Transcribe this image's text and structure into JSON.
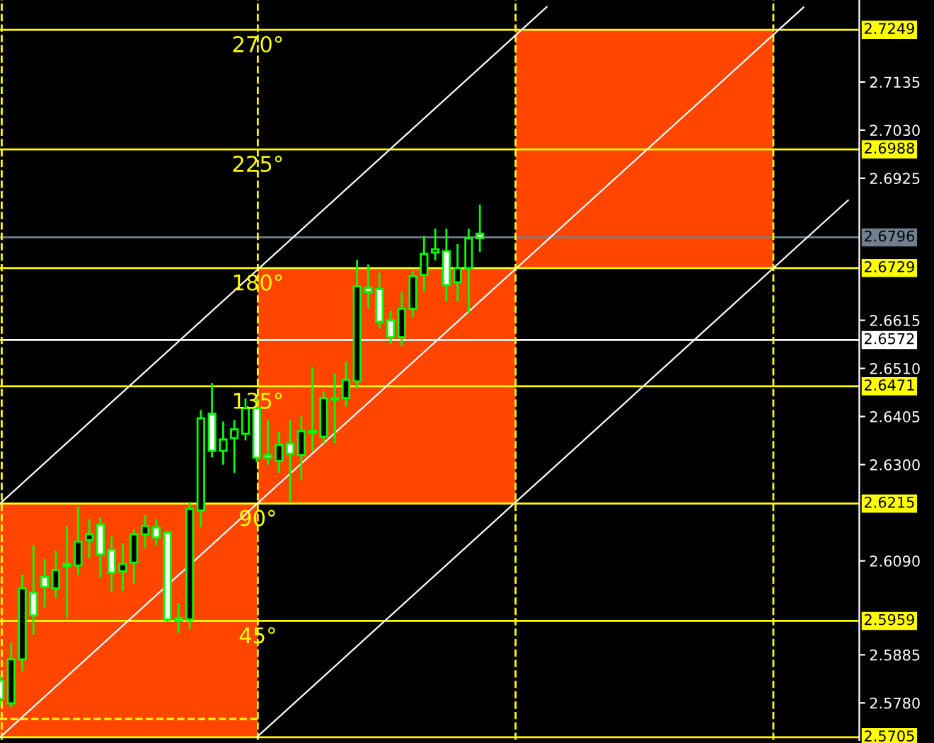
{
  "chart_data": {
    "type": "candlestick",
    "categories": [
      null,
      null,
      null,
      null,
      null,
      null,
      null,
      null,
      null,
      null,
      null,
      null,
      null,
      null,
      null,
      null,
      null,
      null,
      null,
      null,
      null,
      null,
      null,
      null,
      null,
      null,
      null,
      null,
      null,
      null,
      null,
      null,
      null,
      null,
      null,
      null,
      null,
      null,
      null,
      null,
      null,
      null,
      null,
      null,
      null,
      null,
      null,
      null,
      null,
      null,
      null,
      null,
      null,
      null,
      null,
      null,
      null,
      null,
      null,
      null,
      null,
      null,
      null,
      null,
      null,
      null,
      null,
      null,
      null,
      null,
      null,
      null,
      null,
      null,
      null,
      null,
      null
    ],
    "ylim": [
      2.5699,
      2.7314
    ],
    "tick_labels": "y",
    "yticks": [
      {
        "value": 2.578,
        "label": "2.5780"
      },
      {
        "value": 2.5885,
        "label": "2.5885"
      },
      {
        "value": 2.609,
        "label": "2.6090"
      },
      {
        "value": 2.63,
        "label": "2.6300"
      },
      {
        "value": 2.6405,
        "label": "2.6405"
      },
      {
        "value": 2.651,
        "label": "2.6510"
      },
      {
        "value": 2.6615,
        "label": "2.6615"
      },
      {
        "value": 2.6925,
        "label": "2.6925"
      },
      {
        "value": 2.703,
        "label": "2.7030"
      },
      {
        "value": 2.7135,
        "label": "2.7135"
      }
    ],
    "series": [
      {
        "type": "line",
        "color": "#ffffff",
        "values": [
          2.6215,
          null,
          null,
          null,
          null,
          null,
          null,
          null,
          null,
          null,
          null,
          null,
          null,
          null,
          null,
          null,
          null,
          null,
          null,
          null,
          null,
          null,
          null,
          null,
          null,
          null,
          null,
          null,
          null,
          null,
          null,
          null,
          null,
          null,
          null,
          null,
          null,
          null,
          null,
          null,
          null,
          null,
          null,
          null,
          null,
          null,
          null,
          null,
          null,
          2.7299,
          null,
          null,
          null,
          null,
          null,
          null,
          null,
          null,
          null,
          null,
          null,
          null,
          null,
          null,
          null,
          null,
          null,
          null,
          null,
          null,
          null,
          null,
          null,
          null,
          null,
          null,
          null
        ]
      },
      {
        "type": "line",
        "color": "#ffffff",
        "values": [
          2.5705,
          null,
          null,
          null,
          null,
          null,
          null,
          null,
          null,
          null,
          null,
          null,
          null,
          null,
          null,
          null,
          null,
          null,
          null,
          null,
          null,
          null,
          null,
          null,
          null,
          null,
          null,
          null,
          null,
          null,
          null,
          null,
          null,
          null,
          null,
          null,
          null,
          null,
          null,
          null,
          null,
          null,
          null,
          null,
          null,
          null,
          null,
          null,
          null,
          null,
          null,
          null,
          null,
          null,
          null,
          null,
          null,
          null,
          null,
          null,
          null,
          null,
          null,
          null,
          null,
          null,
          null,
          null,
          null,
          null,
          null,
          null,
          2.7298,
          null,
          null,
          null,
          null
        ]
      },
      {
        "type": "line",
        "color": "#ffffff",
        "values": [
          null,
          null,
          null,
          null,
          null,
          null,
          null,
          null,
          null,
          null,
          null,
          null,
          null,
          null,
          null,
          null,
          null,
          null,
          null,
          null,
          null,
          null,
          null,
          2.5705,
          null,
          null,
          null,
          null,
          null,
          null,
          null,
          null,
          null,
          null,
          null,
          null,
          null,
          null,
          null,
          null,
          null,
          null,
          null,
          null,
          null,
          null,
          null,
          null,
          null,
          null,
          null,
          null,
          null,
          null,
          null,
          null,
          null,
          null,
          null,
          null,
          null,
          null,
          null,
          null,
          null,
          null,
          null,
          null,
          null,
          null,
          null,
          null,
          null,
          null,
          null,
          null,
          2.6877
        ]
      },
      {
        "color": "#00ff00",
        "ohlc": [
          [
            2.5829,
            2.5838,
            2.5776,
            2.5789
          ],
          [
            2.5779,
            2.5909,
            2.5773,
            2.5875
          ],
          [
            2.5875,
            2.6058,
            2.5851,
            2.603
          ],
          [
            2.6021,
            2.6123,
            2.5931,
            2.5971
          ],
          [
            2.6055,
            2.6092,
            2.599,
            2.6033
          ],
          [
            2.603,
            2.611,
            2.6011,
            2.607
          ],
          [
            2.6083,
            2.6163,
            2.5968,
            2.6078
          ],
          [
            2.608,
            2.6206,
            2.6061,
            2.6132
          ],
          [
            2.6135,
            2.6179,
            2.6098,
            2.6148
          ],
          [
            2.6169,
            2.6182,
            2.6055,
            2.6104
          ],
          [
            2.6114,
            2.6141,
            2.6024,
            2.6064
          ],
          [
            2.6067,
            2.6126,
            2.6027,
            2.6083
          ],
          [
            2.6086,
            2.6157,
            2.6042,
            2.6148
          ],
          [
            2.6148,
            2.6188,
            2.612,
            2.6166
          ],
          [
            2.6163,
            2.6179,
            2.6126,
            2.6141
          ],
          [
            2.6151,
            2.6154,
            2.5959,
            2.5962
          ],
          [
            2.5965,
            2.5996,
            2.5934,
            2.5959
          ],
          [
            2.5962,
            2.6216,
            2.5943,
            2.6203
          ],
          [
            2.62,
            2.6417,
            2.6166,
            2.6401
          ],
          [
            2.6411,
            2.6476,
            2.6318,
            2.633
          ],
          [
            2.633,
            2.6392,
            2.6302,
            2.6355
          ],
          [
            2.6358,
            2.6395,
            2.6284,
            2.6377
          ],
          [
            2.6367,
            2.6442,
            2.6355,
            2.6423
          ],
          [
            2.6423,
            2.6448,
            2.6308,
            2.6315
          ],
          [
            2.6321,
            2.6395,
            2.6302,
            2.6315
          ],
          [
            2.6308,
            2.637,
            2.6284,
            2.6343
          ],
          [
            2.6346,
            2.6395,
            2.6222,
            2.6324
          ],
          [
            2.6321,
            2.6404,
            2.6268,
            2.6373
          ],
          [
            2.637,
            2.651,
            2.6333,
            2.6373
          ],
          [
            2.6361,
            2.6457,
            2.6349,
            2.6445
          ],
          [
            2.6445,
            2.6497,
            2.6349,
            2.6442
          ],
          [
            2.6445,
            2.6522,
            2.6429,
            2.6485
          ],
          [
            2.6482,
            2.6745,
            2.6469,
            2.6689
          ],
          [
            2.6686,
            2.6735,
            2.6643,
            2.6677
          ],
          [
            2.6683,
            2.6717,
            2.6599,
            2.6612
          ],
          [
            2.6615,
            2.6633,
            2.6565,
            2.6578
          ],
          [
            2.6578,
            2.6674,
            2.6562,
            2.664
          ],
          [
            2.664,
            2.672,
            2.6624,
            2.6711
          ],
          [
            2.6714,
            2.6797,
            2.668,
            2.676
          ],
          [
            2.6763,
            2.6813,
            2.6748,
            2.677
          ],
          [
            2.6766,
            2.6813,
            2.6658,
            2.6692
          ],
          [
            2.6698,
            2.6779,
            2.6658,
            2.6729
          ],
          [
            2.6729,
            2.6813,
            2.6633,
            2.6794
          ],
          [
            2.6804,
            2.6865,
            2.6766,
            2.6794
          ],
          null,
          null,
          null,
          null,
          null,
          null,
          null,
          null,
          null,
          null,
          null,
          null,
          null,
          null,
          null,
          null,
          null,
          null,
          null,
          null,
          null,
          null,
          null,
          null,
          null,
          null,
          null,
          null,
          null,
          null,
          null,
          null,
          null
        ]
      }
    ],
    "ref_lines": [
      {
        "axis": "y",
        "value": 2.7249,
        "label": "2.7249",
        "color": "#ffff00"
      },
      {
        "axis": "y",
        "value": 2.6988,
        "label": "2.6988",
        "color": "#ffff00"
      },
      {
        "axis": "y",
        "value": 2.6729,
        "label": "2.6729",
        "color": "#ffff00"
      },
      {
        "axis": "y",
        "value": 2.6796,
        "label": "2.6796",
        "color": "#708090"
      },
      {
        "axis": "y",
        "value": 2.6572,
        "label": "2.6572",
        "color": "#ffffff"
      },
      {
        "axis": "y",
        "value": 2.6471,
        "label": "2.6471",
        "color": "#ffff00"
      },
      {
        "axis": "y",
        "value": 2.6215,
        "label": "2.6215",
        "color": "#ffff00"
      },
      {
        "axis": "y",
        "value": 2.5959,
        "label": "2.5959",
        "color": "#ffff00"
      },
      {
        "axis": "y",
        "value": 2.5705,
        "label": "2.5705",
        "color": "#ffff00"
      },
      {
        "axis": "y",
        "value": 2.5745,
        "color": "#ffff00",
        "line_style": "dashed"
      }
    ],
    "annotations": [
      "270°",
      "225°",
      "180°",
      "135°",
      "90°",
      "45°"
    ]
  }
}
